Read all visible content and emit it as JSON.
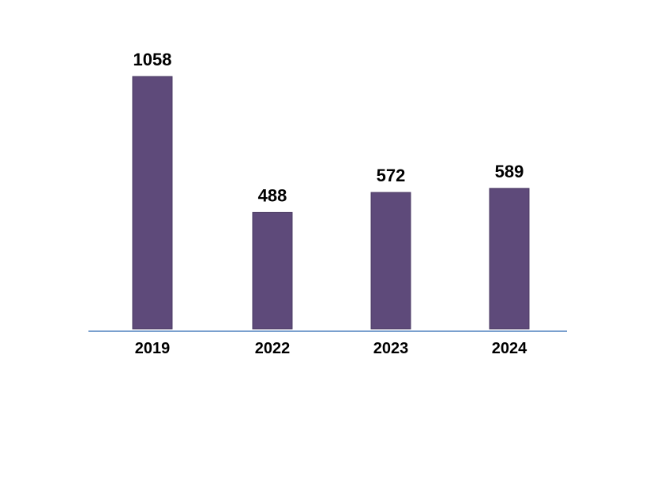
{
  "chart_data": {
    "type": "bar",
    "categories": [
      "2019",
      "2022",
      "2023",
      "2024"
    ],
    "values": [
      1058,
      488,
      572,
      589
    ],
    "data_labels": [
      "1058",
      "488",
      "572",
      "589"
    ],
    "title": "",
    "xlabel": "",
    "ylabel": "",
    "ylim": [
      0,
      1058
    ],
    "grid": false,
    "legend": "none",
    "colors": {
      "bar_fill": "#5e4a7a",
      "bar_stroke": "#4a3a63",
      "baseline": "#4f81bd"
    }
  }
}
